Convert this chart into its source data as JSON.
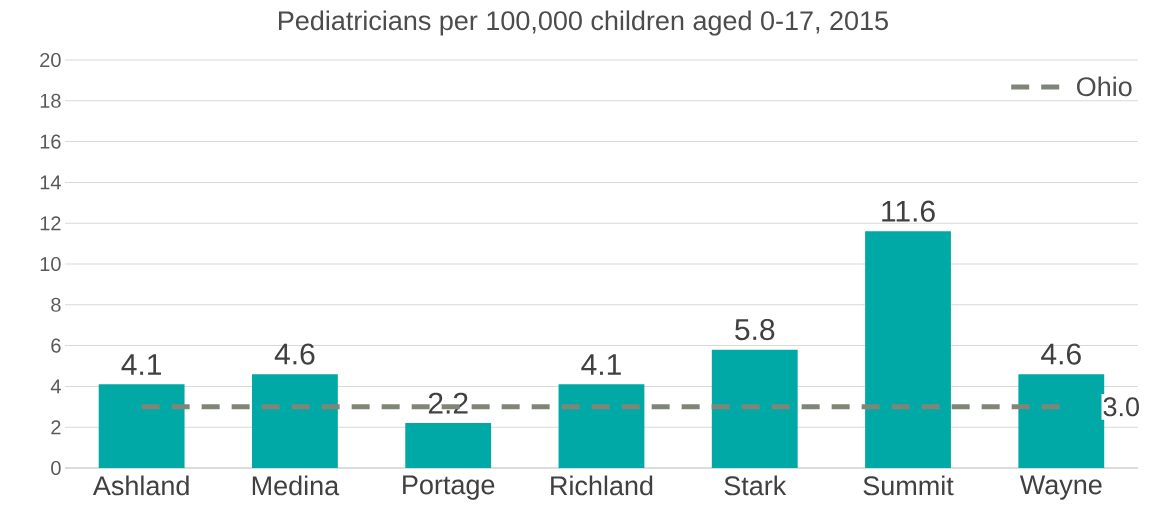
{
  "chart_data": {
    "type": "bar",
    "title": "Pediatricians per 100,000 children aged 0-17, 2015",
    "categories": [
      "Ashland",
      "Medina",
      "Portage",
      "Richland",
      "Stark",
      "Summit",
      "Wayne"
    ],
    "series": [
      {
        "type": "bar",
        "color": "#00a9a5",
        "values": [
          4.1,
          4.6,
          2.2,
          4.1,
          5.8,
          11.6,
          4.6
        ],
        "value_labels": [
          "4.1",
          "4.6",
          "2.2",
          "4.1",
          "5.8",
          "11.6",
          "4.6"
        ]
      },
      {
        "type": "line",
        "name": "Ohio",
        "color": "#7f8677",
        "line_style": "dashed",
        "values": [
          3.0,
          3.0,
          3.0,
          3.0,
          3.0,
          3.0,
          3.0
        ],
        "value_labels": [
          null,
          null,
          null,
          null,
          null,
          null,
          "3.0"
        ]
      }
    ],
    "ylim": [
      0,
      20
    ],
    "yticks": [
      0,
      2,
      4,
      6,
      8,
      10,
      12,
      14,
      16,
      18,
      20
    ],
    "grid": "y",
    "legend": "top right"
  }
}
